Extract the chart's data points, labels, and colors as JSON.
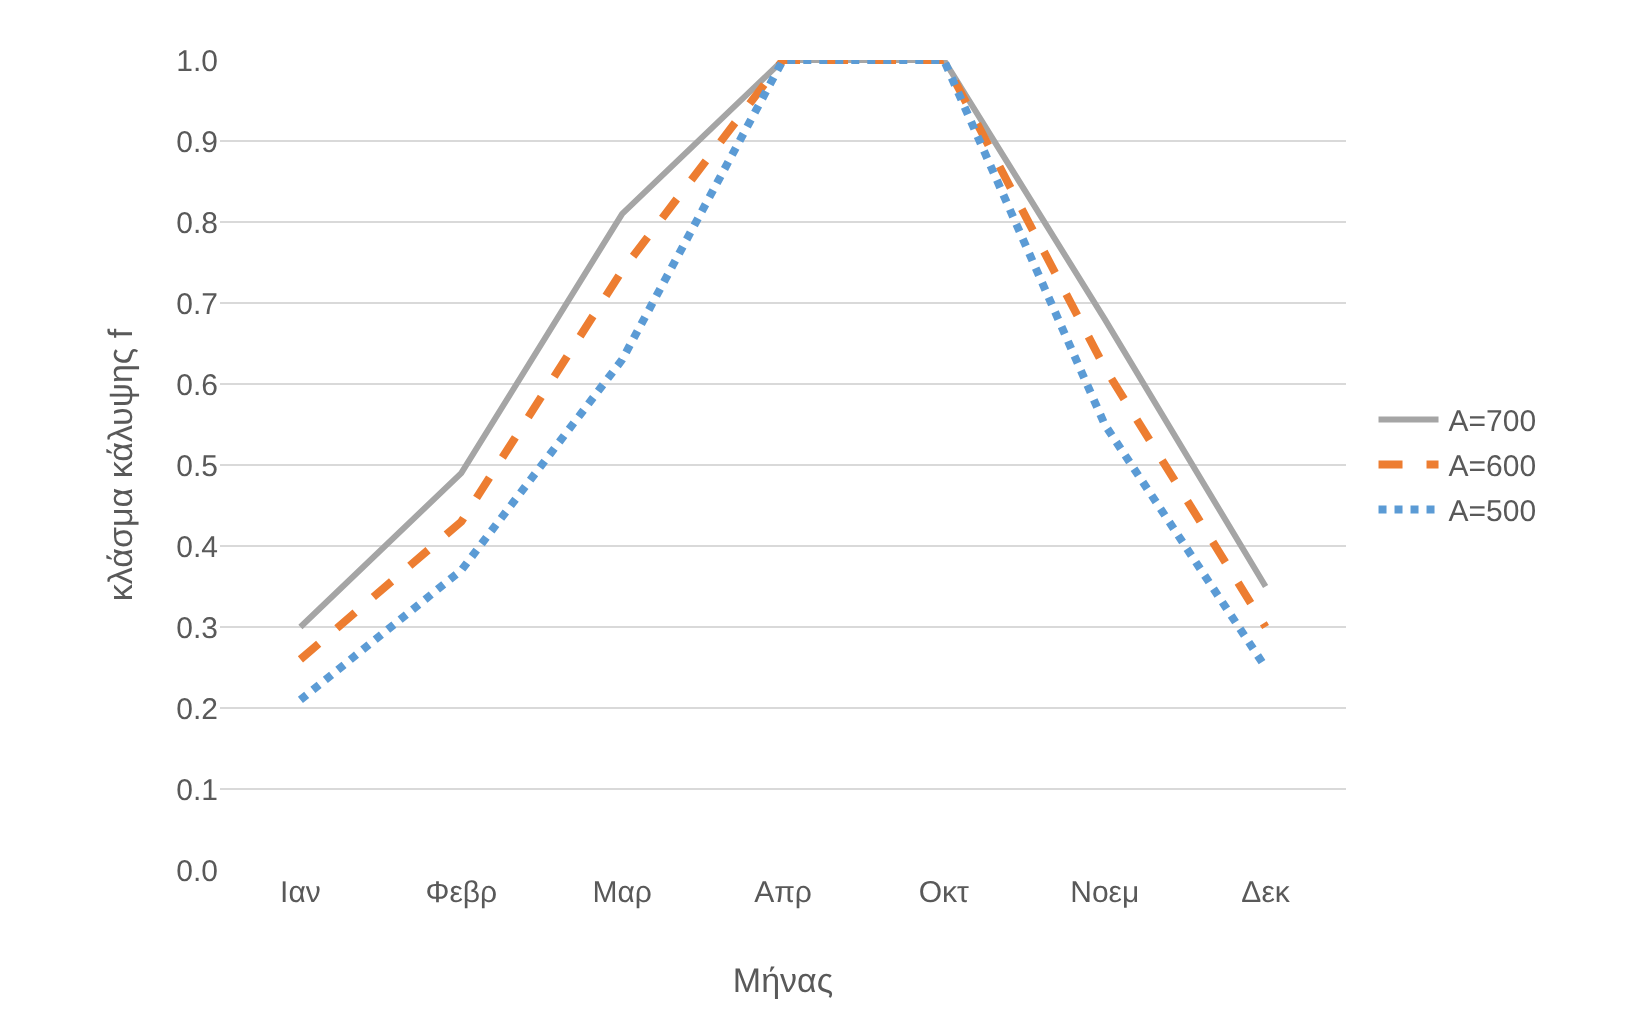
{
  "chart_data": {
    "type": "line",
    "xlabel": "Μήνας",
    "ylabel": "κλάσμα κάλυψης f",
    "categories": [
      "Ιαν",
      "Φεβρ",
      "Μαρ",
      "Απρ",
      "Οκτ",
      "Νοεμ",
      "Δεκ"
    ],
    "series": [
      {
        "name": "A=700",
        "color": "#a5a5a5",
        "line_style": "solid",
        "values": [
          0.3,
          0.49,
          0.81,
          1.0,
          1.0,
          0.68,
          0.35
        ]
      },
      {
        "name": "A=600",
        "color": "#ed7d31",
        "line_style": "dashed",
        "values": [
          0.26,
          0.43,
          0.74,
          1.0,
          1.0,
          0.62,
          0.3
        ]
      },
      {
        "name": "A=500",
        "color": "#5b9bd5",
        "line_style": "dotted",
        "values": [
          0.21,
          0.37,
          0.63,
          1.0,
          1.0,
          0.55,
          0.25
        ]
      }
    ],
    "ylim": [
      0,
      1
    ],
    "yticks": [
      {
        "value": 0,
        "label": "0.0"
      },
      0.1,
      0.2,
      0.3,
      0.4,
      0.5,
      0.6,
      0.7,
      0.8,
      0.9,
      {
        "value": 1,
        "label": "1.0"
      }
    ],
    "grid": "y",
    "legend": "right",
    "marker": "none"
  }
}
